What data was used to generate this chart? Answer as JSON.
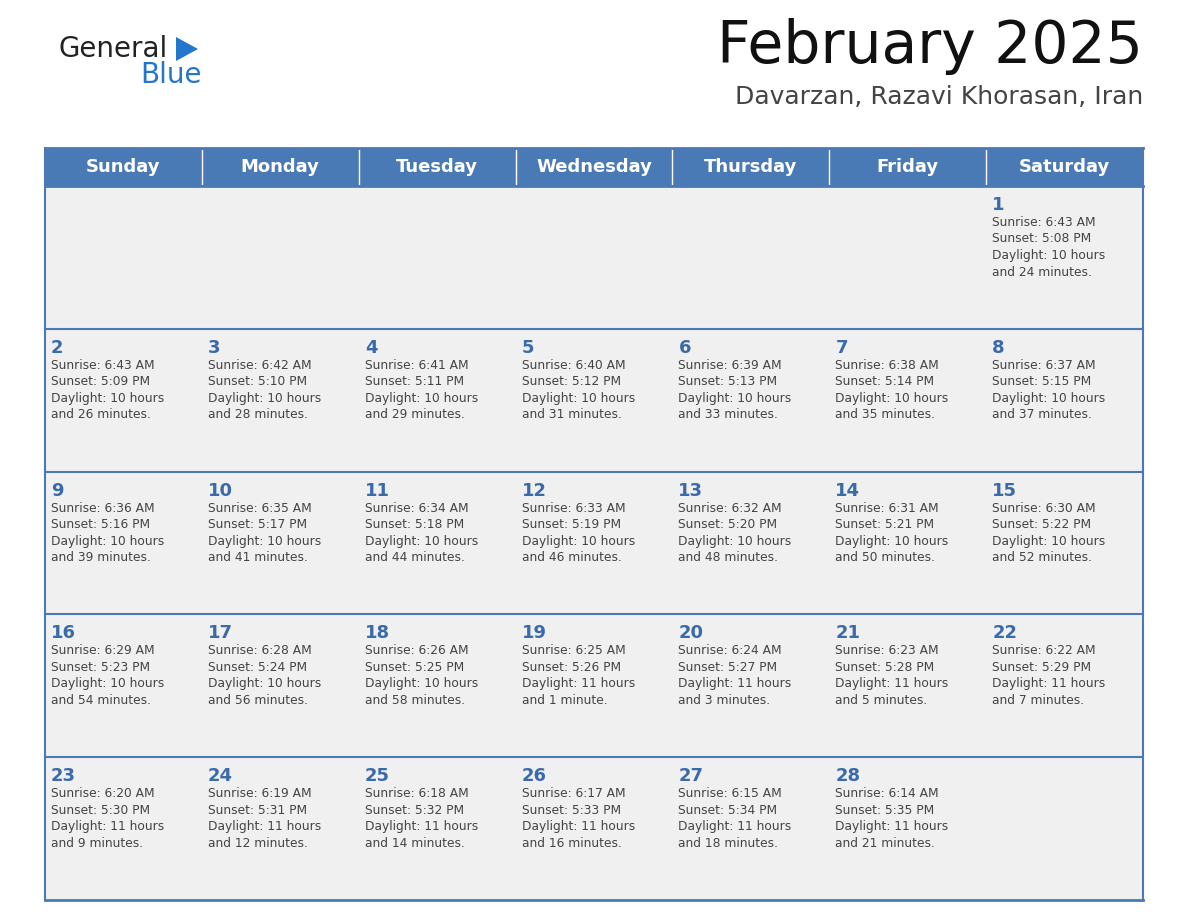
{
  "title": "February 2025",
  "subtitle": "Davarzan, Razavi Khorasan, Iran",
  "days_of_week": [
    "Sunday",
    "Monday",
    "Tuesday",
    "Wednesday",
    "Thursday",
    "Friday",
    "Saturday"
  ],
  "header_bg": "#4a7ab5",
  "header_text": "#ffffff",
  "cell_bg_light": "#f0f0f0",
  "cell_bg_white": "#ffffff",
  "cell_border_color": "#4a7ab5",
  "day_num_color": "#3a6aaa",
  "info_text_color": "#444444",
  "title_color": "#111111",
  "subtitle_color": "#444444",
  "logo_general_color": "#222222",
  "logo_blue_color": "#2277cc",
  "weeks": [
    [
      {
        "day": null,
        "info": ""
      },
      {
        "day": null,
        "info": ""
      },
      {
        "day": null,
        "info": ""
      },
      {
        "day": null,
        "info": ""
      },
      {
        "day": null,
        "info": ""
      },
      {
        "day": null,
        "info": ""
      },
      {
        "day": 1,
        "info": "Sunrise: 6:43 AM\nSunset: 5:08 PM\nDaylight: 10 hours\nand 24 minutes."
      }
    ],
    [
      {
        "day": 2,
        "info": "Sunrise: 6:43 AM\nSunset: 5:09 PM\nDaylight: 10 hours\nand 26 minutes."
      },
      {
        "day": 3,
        "info": "Sunrise: 6:42 AM\nSunset: 5:10 PM\nDaylight: 10 hours\nand 28 minutes."
      },
      {
        "day": 4,
        "info": "Sunrise: 6:41 AM\nSunset: 5:11 PM\nDaylight: 10 hours\nand 29 minutes."
      },
      {
        "day": 5,
        "info": "Sunrise: 6:40 AM\nSunset: 5:12 PM\nDaylight: 10 hours\nand 31 minutes."
      },
      {
        "day": 6,
        "info": "Sunrise: 6:39 AM\nSunset: 5:13 PM\nDaylight: 10 hours\nand 33 minutes."
      },
      {
        "day": 7,
        "info": "Sunrise: 6:38 AM\nSunset: 5:14 PM\nDaylight: 10 hours\nand 35 minutes."
      },
      {
        "day": 8,
        "info": "Sunrise: 6:37 AM\nSunset: 5:15 PM\nDaylight: 10 hours\nand 37 minutes."
      }
    ],
    [
      {
        "day": 9,
        "info": "Sunrise: 6:36 AM\nSunset: 5:16 PM\nDaylight: 10 hours\nand 39 minutes."
      },
      {
        "day": 10,
        "info": "Sunrise: 6:35 AM\nSunset: 5:17 PM\nDaylight: 10 hours\nand 41 minutes."
      },
      {
        "day": 11,
        "info": "Sunrise: 6:34 AM\nSunset: 5:18 PM\nDaylight: 10 hours\nand 44 minutes."
      },
      {
        "day": 12,
        "info": "Sunrise: 6:33 AM\nSunset: 5:19 PM\nDaylight: 10 hours\nand 46 minutes."
      },
      {
        "day": 13,
        "info": "Sunrise: 6:32 AM\nSunset: 5:20 PM\nDaylight: 10 hours\nand 48 minutes."
      },
      {
        "day": 14,
        "info": "Sunrise: 6:31 AM\nSunset: 5:21 PM\nDaylight: 10 hours\nand 50 minutes."
      },
      {
        "day": 15,
        "info": "Sunrise: 6:30 AM\nSunset: 5:22 PM\nDaylight: 10 hours\nand 52 minutes."
      }
    ],
    [
      {
        "day": 16,
        "info": "Sunrise: 6:29 AM\nSunset: 5:23 PM\nDaylight: 10 hours\nand 54 minutes."
      },
      {
        "day": 17,
        "info": "Sunrise: 6:28 AM\nSunset: 5:24 PM\nDaylight: 10 hours\nand 56 minutes."
      },
      {
        "day": 18,
        "info": "Sunrise: 6:26 AM\nSunset: 5:25 PM\nDaylight: 10 hours\nand 58 minutes."
      },
      {
        "day": 19,
        "info": "Sunrise: 6:25 AM\nSunset: 5:26 PM\nDaylight: 11 hours\nand 1 minute."
      },
      {
        "day": 20,
        "info": "Sunrise: 6:24 AM\nSunset: 5:27 PM\nDaylight: 11 hours\nand 3 minutes."
      },
      {
        "day": 21,
        "info": "Sunrise: 6:23 AM\nSunset: 5:28 PM\nDaylight: 11 hours\nand 5 minutes."
      },
      {
        "day": 22,
        "info": "Sunrise: 6:22 AM\nSunset: 5:29 PM\nDaylight: 11 hours\nand 7 minutes."
      }
    ],
    [
      {
        "day": 23,
        "info": "Sunrise: 6:20 AM\nSunset: 5:30 PM\nDaylight: 11 hours\nand 9 minutes."
      },
      {
        "day": 24,
        "info": "Sunrise: 6:19 AM\nSunset: 5:31 PM\nDaylight: 11 hours\nand 12 minutes."
      },
      {
        "day": 25,
        "info": "Sunrise: 6:18 AM\nSunset: 5:32 PM\nDaylight: 11 hours\nand 14 minutes."
      },
      {
        "day": 26,
        "info": "Sunrise: 6:17 AM\nSunset: 5:33 PM\nDaylight: 11 hours\nand 16 minutes."
      },
      {
        "day": 27,
        "info": "Sunrise: 6:15 AM\nSunset: 5:34 PM\nDaylight: 11 hours\nand 18 minutes."
      },
      {
        "day": 28,
        "info": "Sunrise: 6:14 AM\nSunset: 5:35 PM\nDaylight: 11 hours\nand 21 minutes."
      },
      {
        "day": null,
        "info": ""
      }
    ]
  ],
  "fig_width": 11.88,
  "fig_height": 9.18,
  "dpi": 100
}
